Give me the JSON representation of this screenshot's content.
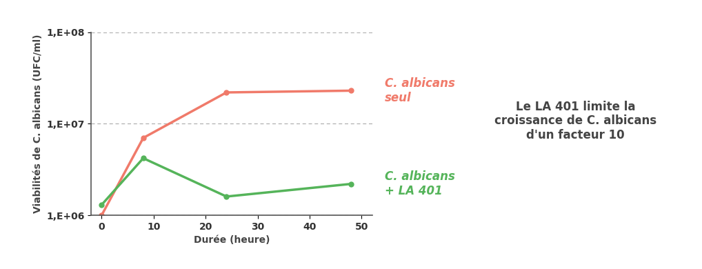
{
  "chart_data": {
    "type": "line",
    "x_label": "Durée (heure)",
    "y_label": "Viabilités de C. albicans (UFC/ml)",
    "annotation": "Le LA 401 limite la\ncroissance de C. albicans\nd'un facteur 10",
    "log": "y",
    "grid": true,
    "xlim": [
      -2,
      52
    ],
    "xticks": [
      0,
      10,
      20,
      30,
      40,
      50
    ],
    "ylim": [
      1000000,
      100000000
    ],
    "yticks": [
      {
        "value": 1000000,
        "label": "1,E+06"
      },
      {
        "value": 10000000,
        "label": "1,E+07"
      },
      {
        "value": 100000000,
        "label": "1,E+08"
      }
    ],
    "series": [
      {
        "name": "C. albicans\nseul",
        "color": "#f07a6a",
        "marker": "o",
        "line_style": "solid",
        "x": [
          0,
          8,
          24,
          48
        ],
        "values": [
          1000000,
          7000000,
          22000000,
          23000000
        ]
      },
      {
        "name": "C. albicans\n+ LA 401",
        "color": "#55b45a",
        "marker": "o",
        "line_style": "solid",
        "x": [
          0,
          8,
          24,
          48
        ],
        "values": [
          1300000,
          4200000,
          1600000,
          2200000
        ]
      }
    ]
  }
}
